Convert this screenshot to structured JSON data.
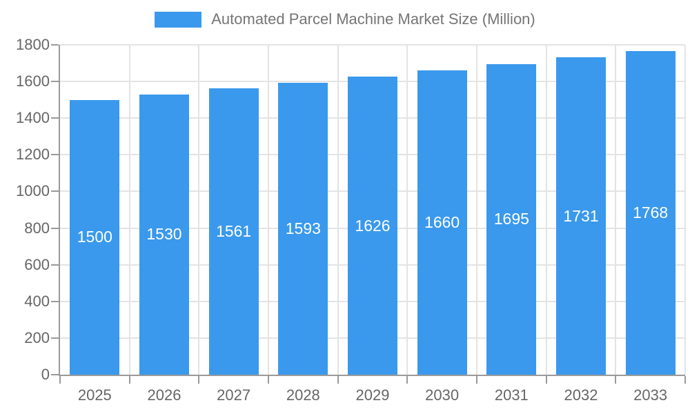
{
  "chart_data": {
    "type": "bar",
    "title": "Automated Parcel Machine Market Size (Million)",
    "legend_position": "top-center",
    "categories": [
      "2025",
      "2026",
      "2027",
      "2028",
      "2029",
      "2030",
      "2031",
      "2032",
      "2033"
    ],
    "values": [
      1500,
      1530,
      1561,
      1593,
      1626,
      1660,
      1695,
      1731,
      1768
    ],
    "series_name": "Automated Parcel Machine Market Size (Million)",
    "value_labels": [
      "1500",
      "1530",
      "1561",
      "1593",
      "1626",
      "1660",
      "1695",
      "1731",
      "1768"
    ],
    "value_labels_position": "inside-center",
    "xlabel": "",
    "ylabel": "",
    "ylim": [
      0,
      1800
    ],
    "yticks": [
      0,
      200,
      400,
      600,
      800,
      1000,
      1200,
      1400,
      1600,
      1800
    ],
    "grid": true,
    "colors": {
      "bar": "#3A99EC",
      "value_label": "#FFFFFF",
      "axis": "#999999",
      "grid": "#E3E3E3",
      "tick_label": "#666666",
      "legend_text": "#757575",
      "background": "#FFFFFF"
    }
  }
}
